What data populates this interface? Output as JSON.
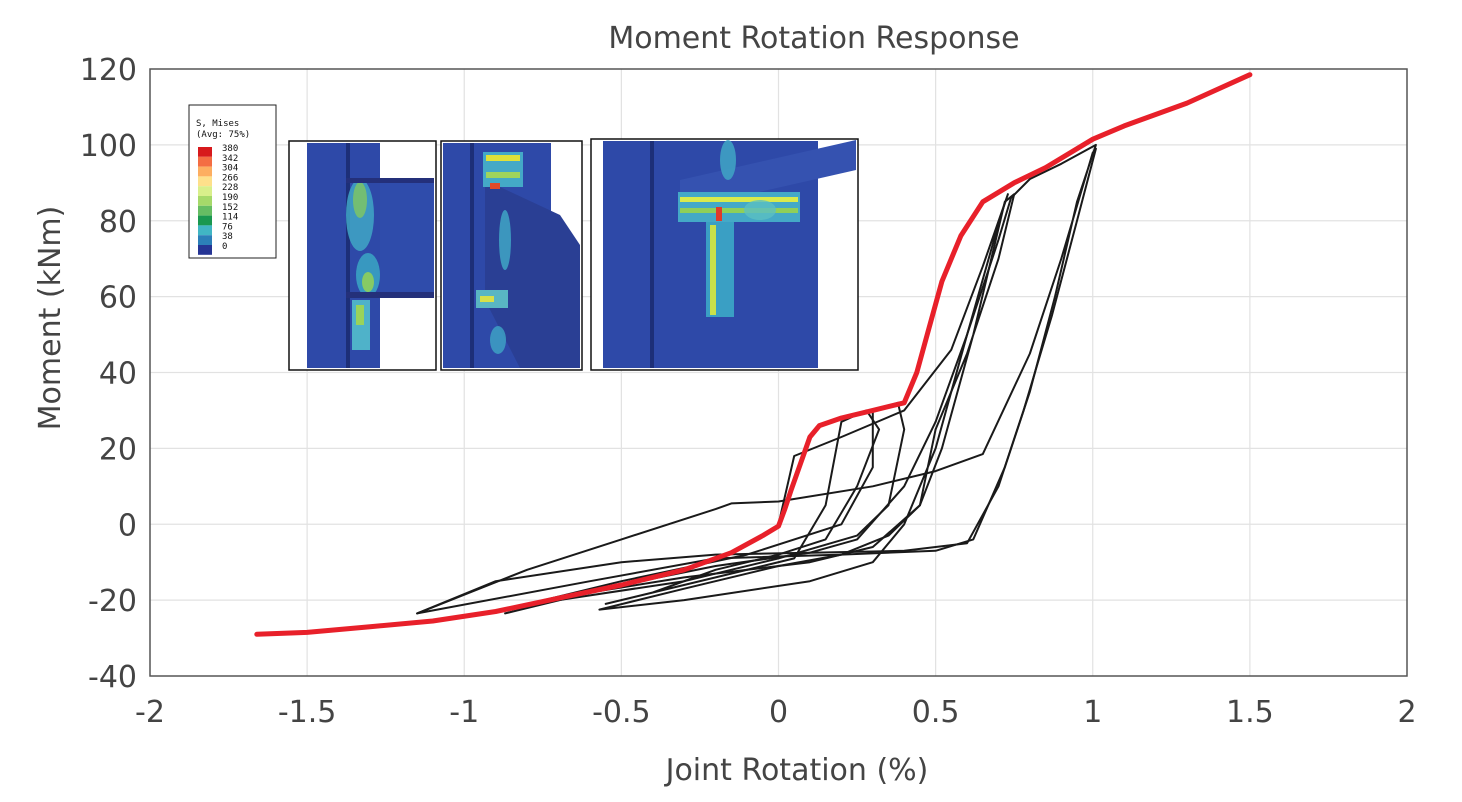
{
  "chart_data": {
    "type": "line",
    "title": "Moment Rotation Response",
    "xlabel": "Joint Rotation (%)",
    "ylabel": "Moment (kNm)",
    "xlim": [
      -2,
      2
    ],
    "ylim": [
      -40,
      120
    ],
    "xticks": [
      "-2",
      "-1.5",
      "-1",
      "-0.5",
      "0",
      "0.5",
      "1",
      "1.5",
      "2"
    ],
    "yticks": [
      "-40",
      "-20",
      "0",
      "20",
      "40",
      "60",
      "80",
      "100",
      "120"
    ],
    "grid": true,
    "series": [
      {
        "color": "#e8202a",
        "style": "thick",
        "points": [
          [
            -1.66,
            -29
          ],
          [
            -1.5,
            -28.5
          ],
          [
            -1.3,
            -27
          ],
          [
            -1.1,
            -25.5
          ],
          [
            -0.9,
            -23
          ],
          [
            -0.7,
            -19.5
          ],
          [
            -0.5,
            -16
          ],
          [
            -0.3,
            -12
          ],
          [
            -0.15,
            -7.5
          ],
          [
            -0.05,
            -3
          ],
          [
            0.0,
            -0.5
          ],
          [
            0.02,
            4
          ],
          [
            0.04,
            9
          ],
          [
            0.07,
            16
          ],
          [
            0.1,
            23
          ],
          [
            0.13,
            26
          ],
          [
            0.2,
            28
          ],
          [
            0.3,
            30
          ],
          [
            0.4,
            32
          ],
          [
            0.44,
            40
          ],
          [
            0.48,
            52
          ],
          [
            0.52,
            64
          ],
          [
            0.58,
            76
          ],
          [
            0.65,
            85
          ],
          [
            0.75,
            90
          ],
          [
            0.85,
            94
          ],
          [
            1.0,
            101.5
          ],
          [
            1.1,
            105
          ],
          [
            1.3,
            111
          ],
          [
            1.5,
            118.5
          ]
        ]
      },
      {
        "color": "#1a1a1a",
        "style": "thin",
        "points": [
          [
            0.0,
            0
          ],
          [
            0.05,
            18
          ],
          [
            0.2,
            23
          ],
          [
            0.4,
            30
          ],
          [
            0.55,
            46
          ],
          [
            0.65,
            68
          ],
          [
            0.73,
            87
          ],
          [
            0.71,
            82
          ],
          [
            0.6,
            50
          ],
          [
            0.5,
            20
          ],
          [
            0.4,
            0
          ],
          [
            0.3,
            -10
          ],
          [
            0.1,
            -15
          ],
          [
            -0.3,
            -20
          ],
          [
            -0.57,
            -22.5
          ],
          [
            -0.3,
            -17
          ],
          [
            0.0,
            -11
          ],
          [
            0.2,
            -8
          ],
          [
            0.35,
            -3
          ],
          [
            0.45,
            5
          ],
          [
            0.5,
            25
          ]
        ]
      },
      {
        "color": "#1a1a1a",
        "style": "thin",
        "points": [
          [
            0.5,
            25
          ],
          [
            0.6,
            45
          ],
          [
            0.7,
            70
          ],
          [
            0.75,
            87
          ],
          [
            0.72,
            85
          ],
          [
            0.62,
            50
          ],
          [
            0.52,
            20
          ],
          [
            0.45,
            5
          ],
          [
            0.3,
            -6
          ],
          [
            0.1,
            -10
          ],
          [
            -0.3,
            -14
          ],
          [
            -0.6,
            -18
          ],
          [
            -0.87,
            -23.5
          ],
          [
            -0.5,
            -16
          ],
          [
            -0.2,
            -11
          ],
          [
            0.1,
            -7.5
          ],
          [
            0.25,
            -4
          ],
          [
            0.4,
            10
          ],
          [
            0.5,
            27
          ]
        ]
      },
      {
        "color": "#1a1a1a",
        "style": "thin",
        "points": [
          [
            0.5,
            27
          ],
          [
            0.6,
            50
          ],
          [
            0.7,
            75
          ],
          [
            0.74,
            86
          ],
          [
            0.8,
            91
          ],
          [
            0.9,
            95
          ],
          [
            1.01,
            100
          ],
          [
            0.95,
            85
          ],
          [
            0.88,
            60
          ],
          [
            0.8,
            35
          ],
          [
            0.72,
            15
          ],
          [
            0.62,
            -4
          ],
          [
            0.5,
            -7
          ],
          [
            0.2,
            -8
          ],
          [
            -0.2,
            -9
          ],
          [
            -0.6,
            -15
          ],
          [
            -1.15,
            -23.5
          ],
          [
            -0.8,
            -12
          ],
          [
            -0.5,
            -4
          ],
          [
            -0.2,
            4
          ],
          [
            -0.15,
            5.5
          ],
          [
            0.0,
            6
          ],
          [
            0.3,
            10
          ],
          [
            0.5,
            14
          ],
          [
            0.65,
            18.5
          ],
          [
            0.8,
            45
          ],
          [
            0.9,
            70
          ],
          [
            1.0,
            98
          ]
        ]
      },
      {
        "color": "#1a1a1a",
        "style": "thin",
        "points": [
          [
            1.01,
            99
          ],
          [
            0.95,
            80
          ],
          [
            0.87,
            55
          ],
          [
            0.78,
            30
          ],
          [
            0.7,
            10
          ],
          [
            0.6,
            -5
          ],
          [
            0.4,
            -7
          ],
          [
            0.1,
            -7.5
          ],
          [
            -0.2,
            -8
          ],
          [
            -0.5,
            -10
          ],
          [
            -0.9,
            -15
          ],
          [
            -1.15,
            -23.5
          ]
        ]
      },
      {
        "color": "#1a1a1a",
        "style": "thin",
        "points": [
          [
            0.2,
            27
          ],
          [
            0.28,
            30
          ],
          [
            0.32,
            25
          ],
          [
            0.25,
            10
          ],
          [
            0.15,
            -4
          ],
          [
            0.0,
            -8
          ],
          [
            -0.2,
            -12
          ],
          [
            -0.4,
            -18
          ],
          [
            -0.55,
            -21
          ],
          [
            -0.2,
            -14
          ],
          [
            0.05,
            -9
          ],
          [
            0.15,
            5
          ],
          [
            0.2,
            27
          ]
        ]
      },
      {
        "color": "#1a1a1a",
        "style": "thin",
        "points": [
          [
            0.3,
            30
          ],
          [
            0.38,
            32
          ],
          [
            0.4,
            25
          ],
          [
            0.35,
            5
          ],
          [
            0.25,
            -3
          ],
          [
            0.0,
            -9
          ],
          [
            -0.3,
            -15
          ],
          [
            -0.7,
            -20
          ],
          [
            -0.87,
            -22.5
          ],
          [
            -0.5,
            -15
          ],
          [
            -0.1,
            -8
          ],
          [
            0.2,
            0
          ],
          [
            0.3,
            15
          ],
          [
            0.3,
            30
          ]
        ]
      }
    ]
  },
  "inset_legend": {
    "title_lines": [
      "S, Mises",
      "(Avg: 75%)"
    ],
    "values": [
      "380",
      "342",
      "304",
      "266",
      "228",
      "190",
      "152",
      "114",
      "76",
      "38",
      "0"
    ],
    "colors": [
      "#d7191c",
      "#f46d43",
      "#fdae61",
      "#fee08b",
      "#d9ef8b",
      "#a6d96a",
      "#66bd63",
      "#1a9850",
      "#41b6c4",
      "#2c7fb8",
      "#253494"
    ]
  }
}
